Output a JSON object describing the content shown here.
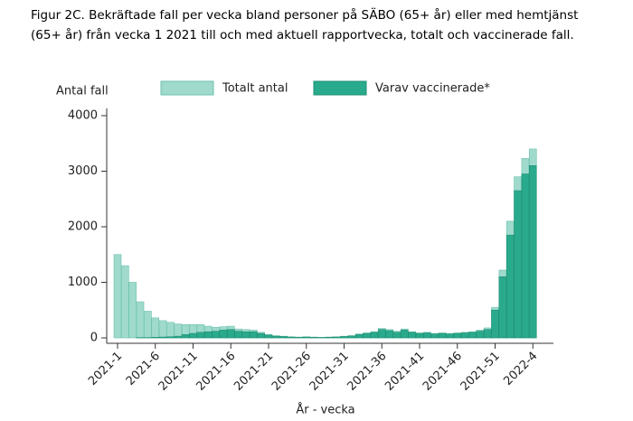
{
  "chart_data": {
    "type": "bar",
    "title": [
      "Figur 2C. Bekräftade fall per vecka bland personer på SÄBO (65+ år) eller med hemtjänst",
      "(65+ år) från vecka 1 2021 till och med aktuell rapportvecka, totalt och vaccinerade fall."
    ],
    "y_label": "Antal fall",
    "x_label": "År - vecka",
    "categories": [
      "2021-1",
      null,
      null,
      null,
      null,
      "2021-6",
      null,
      null,
      null,
      null,
      "2021-11",
      null,
      null,
      null,
      null,
      "2021-16",
      null,
      null,
      null,
      null,
      "2021-21",
      null,
      null,
      null,
      null,
      "2021-26",
      null,
      null,
      null,
      null,
      "2021-31",
      null,
      null,
      null,
      null,
      "2021-36",
      null,
      null,
      null,
      null,
      "2021-41",
      null,
      null,
      null,
      null,
      "2021-46",
      null,
      null,
      null,
      null,
      "2021-51",
      null,
      null,
      null,
      null,
      "2022-4"
    ],
    "series": [
      {
        "name": "Totalt antal",
        "color": "#9fdacd",
        "values": [
          1500,
          1300,
          1000,
          650,
          480,
          360,
          310,
          280,
          250,
          240,
          240,
          240,
          210,
          190,
          200,
          210,
          160,
          150,
          140,
          100,
          60,
          40,
          30,
          20,
          15,
          20,
          15,
          10,
          15,
          20,
          30,
          40,
          70,
          90,
          110,
          170,
          150,
          120,
          160,
          110,
          90,
          100,
          80,
          90,
          80,
          90,
          100,
          110,
          140,
          180,
          550,
          1220,
          2100,
          2900,
          3230,
          3400
        ]
      },
      {
        "name": "Varav vaccinerade*",
        "color": "#2aaa8c",
        "values": [
          0,
          0,
          0,
          5,
          5,
          10,
          15,
          20,
          30,
          60,
          80,
          100,
          110,
          120,
          140,
          150,
          120,
          110,
          110,
          80,
          50,
          30,
          25,
          15,
          10,
          15,
          10,
          8,
          12,
          15,
          25,
          35,
          60,
          80,
          100,
          150,
          130,
          100,
          140,
          100,
          80,
          90,
          70,
          80,
          70,
          80,
          90,
          100,
          120,
          150,
          500,
          1100,
          1850,
          2650,
          2950,
          3100
        ]
      }
    ],
    "ylim": [
      0,
      4000
    ],
    "yticks": [
      0,
      1000,
      2000,
      3000,
      4000
    ]
  }
}
